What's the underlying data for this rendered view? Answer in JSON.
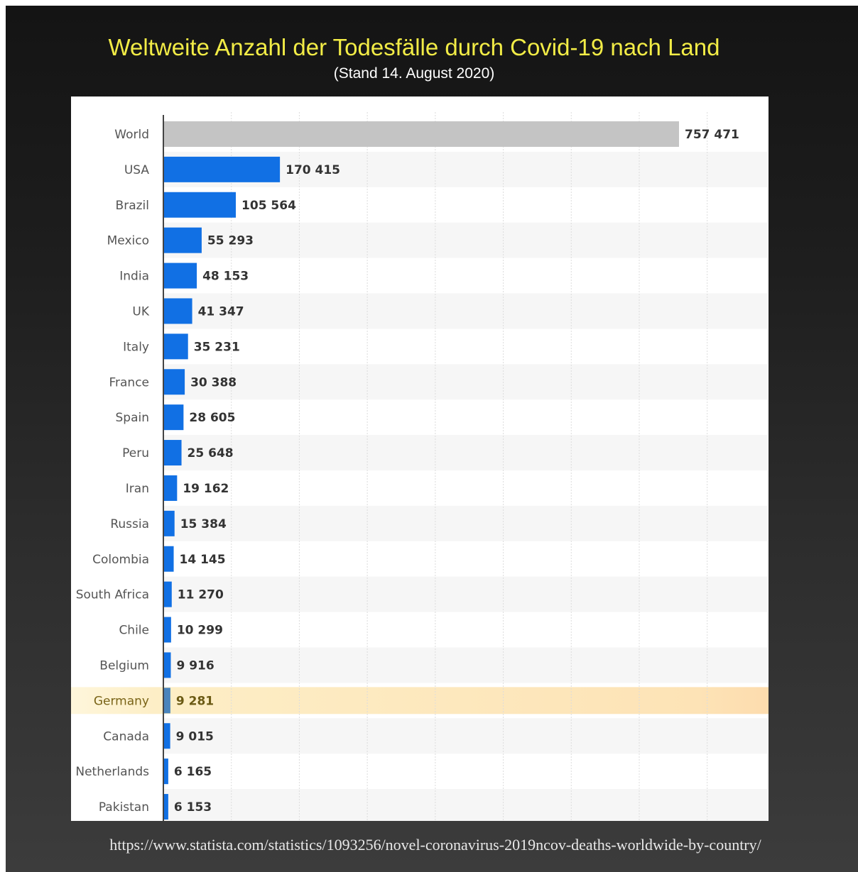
{
  "header": {
    "title": "Weltweite Anzahl der Todesfälle durch Covid-19 nach Land",
    "subtitle": "(Stand 14. August 2020)"
  },
  "footer": {
    "source_url": "https://www.statista.com/statistics/1093256/novel-coronavirus-2019ncov-deaths-worldwide-by-country/"
  },
  "chart_data": {
    "type": "bar",
    "orientation": "horizontal",
    "title": "Weltweite Anzahl der Todesfälle durch Covid-19 nach Land",
    "subtitle": "(Stand 14. August 2020)",
    "categories": [
      "World",
      "USA",
      "Brazil",
      "Mexico",
      "India",
      "UK",
      "Italy",
      "France",
      "Spain",
      "Peru",
      "Iran",
      "Russia",
      "Colombia",
      "South Africa",
      "Chile",
      "Belgium",
      "Germany",
      "Canada",
      "Netherlands",
      "Pakistan"
    ],
    "values": [
      757471,
      170415,
      105564,
      55293,
      48153,
      41347,
      35231,
      30388,
      28605,
      25648,
      19162,
      15384,
      14145,
      11270,
      10299,
      9916,
      9281,
      9015,
      6165,
      6153
    ],
    "value_labels": [
      "757 471",
      "170 415",
      "105 564",
      "55 293",
      "48 153",
      "41 347",
      "35 231",
      "30 388",
      "28 605",
      "25 648",
      "19 162",
      "15 384",
      "14 145",
      "11 270",
      "10 299",
      "9 916",
      "9 281",
      "9 015",
      "6 165",
      "6 153"
    ],
    "highlighted": "Germany",
    "xlim": [
      0,
      800000
    ],
    "grid": true,
    "xlabel": "",
    "ylabel": "",
    "colors": {
      "bar": "#1170e4",
      "world_bar": "#c4c4c4",
      "highlight_band": "#fde6b0",
      "highlight_bar": "#4a84bc",
      "row_alt": "#f6f6f6"
    }
  }
}
